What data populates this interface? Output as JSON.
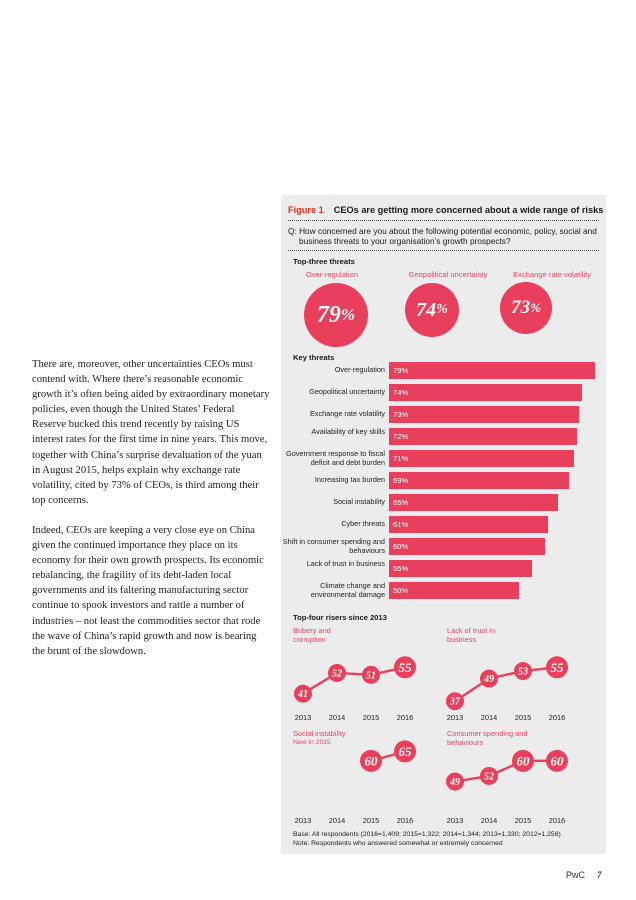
{
  "body": {
    "para1": "There are, moreover, other uncertainties CEOs must contend with. Where there’s reasonable economic growth it’s often being aided by extraordinary monetary policies, even though the United States’ Federal Reserve bucked this trend recently by raising US interest rates for the first time in nine years. This move, together with China’s surprise devaluation of the yuan in August 2015, helps explain why exchange rate volatility, cited by 73% of CEOs, is third among their top concerns.",
    "para2": "Indeed, CEOs are keeping a very close eye on China given the continued importance they place on its economy for their own growth prospects. Its economic rebalancing, the fragility of its debt-laden local governments and its faltering manufacturing sector continue to spook investors and rattle a number of industries – not least the commodities sector that rode the wave of China’s rapid growth and now is bearing the brunt of the slowdown."
  },
  "figure": {
    "number": "Figure 1",
    "title": "CEOs are getting more concerned about a wide range of risks",
    "question": "Q: How concerned are you about the following potential economic, policy, social and business threats to your organisation’s growth prospects?",
    "top_three_title": "Top-three threats",
    "top_three": [
      {
        "label": "Over-regulation",
        "value": "79",
        "pct": "%"
      },
      {
        "label": "Geopolitical uncertainty",
        "value": "74",
        "pct": "%"
      },
      {
        "label": "Exchange rate volatility",
        "value": "73",
        "pct": "%"
      }
    ],
    "key_threats_title": "Key threats",
    "risers_title": "Top-four risers since 2013",
    "base_note": "Base: All respondents (2016=1,409; 2015=1,322; 2014=1,344; 2013=1,330; 2012=1,258)",
    "note": "Note: Respondents who answered somewhat or extremely concerned",
    "accent_color": "#e8405c"
  },
  "chart_data": [
    {
      "type": "bar",
      "title": "Key threats",
      "orientation": "horizontal",
      "categories": [
        "Over-regulation",
        "Geopolitical uncertainty",
        "Exchange rate volatility",
        "Availability of key skills",
        "Government response to fiscal deficit and debt burden",
        "Increasing tax burden",
        "Social instability",
        "Cyber threats",
        "Shift in consumer spending and behaviours",
        "Lack of trust in business",
        "Climate change and environmental damage"
      ],
      "values": [
        79,
        74,
        73,
        72,
        71,
        69,
        65,
        61,
        60,
        55,
        50
      ],
      "value_labels": [
        "79%",
        "74%",
        "73%",
        "72%",
        "71%",
        "69%",
        "65%",
        "61%",
        "60%",
        "55%",
        "50%"
      ]
    },
    {
      "type": "line",
      "title": "Bribery and corruption",
      "x": [
        "2013",
        "2014",
        "2015",
        "2016"
      ],
      "values": [
        41,
        52,
        51,
        55
      ]
    },
    {
      "type": "line",
      "title": "Lack of trust in business",
      "x": [
        "2013",
        "2014",
        "2015",
        "2016"
      ],
      "values": [
        37,
        49,
        53,
        55
      ]
    },
    {
      "type": "line",
      "title": "Social instability",
      "subtitle": "New in 2015",
      "x": [
        "2013",
        "2014",
        "2015",
        "2016"
      ],
      "values": [
        null,
        null,
        60,
        65
      ]
    },
    {
      "type": "line",
      "title": "Consumer spending and behaviours",
      "x": [
        "2013",
        "2014",
        "2015",
        "2016"
      ],
      "values": [
        49,
        52,
        60,
        60
      ]
    }
  ],
  "footer": {
    "brand": "PwC",
    "page": "7"
  }
}
